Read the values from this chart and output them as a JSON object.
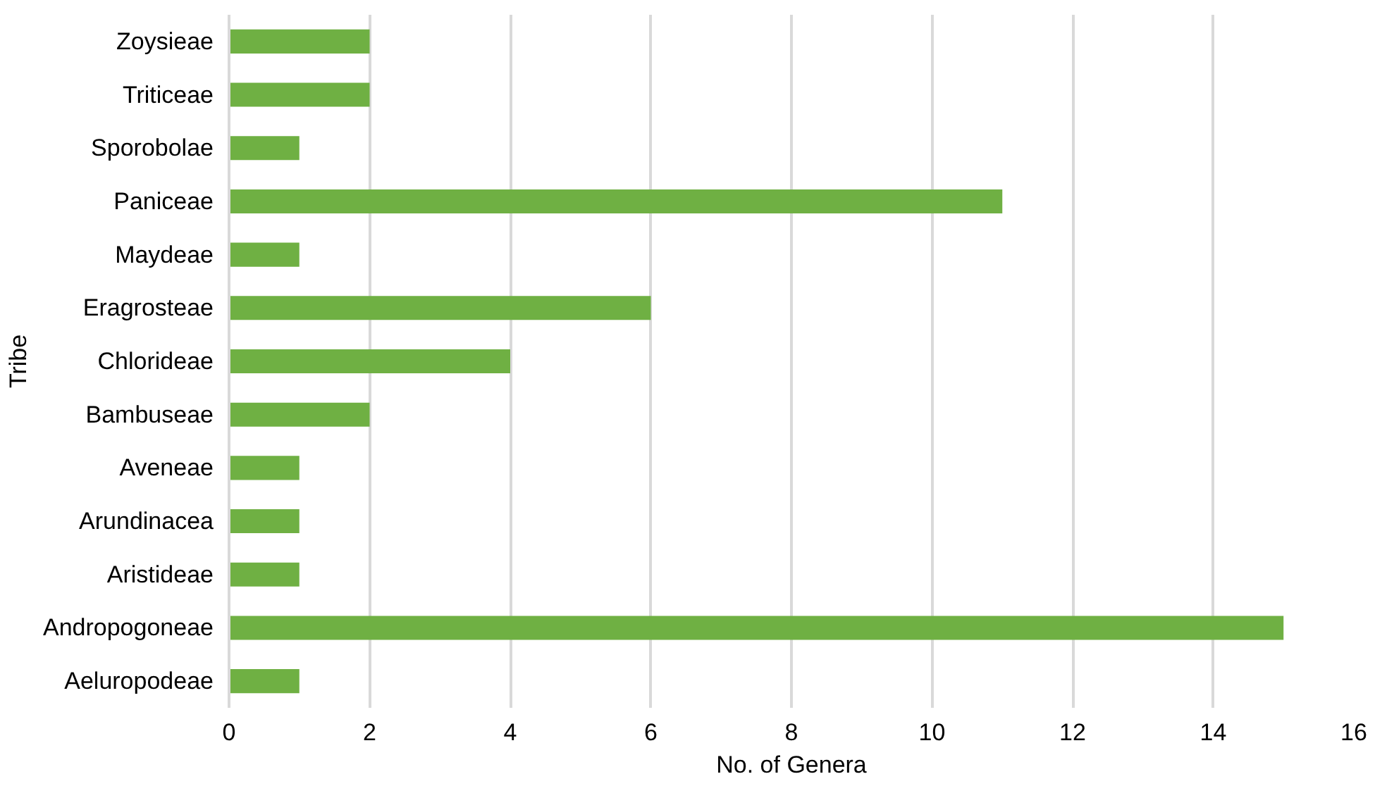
{
  "chart_data": {
    "type": "bar",
    "orientation": "horizontal",
    "xlabel": "No. of Genera",
    "ylabel": "Tribe",
    "categories": [
      "Zoysieae",
      "Triticeae",
      "Sporobolae",
      "Paniceae",
      "Maydeae",
      "Eragrosteae",
      "Chlorideae",
      "Bambuseae",
      "Aveneae",
      "Arundinacea",
      "Aristideae",
      "Andropogoneae",
      "Aeluropodeae"
    ],
    "values": [
      2,
      2,
      1,
      11,
      1,
      6,
      4,
      2,
      1,
      1,
      1,
      15,
      1
    ],
    "color": "#6fb043",
    "xlim": [
      0,
      16
    ],
    "xticks": [
      0,
      2,
      4,
      6,
      8,
      10,
      12,
      14,
      16
    ],
    "grid": "x"
  }
}
